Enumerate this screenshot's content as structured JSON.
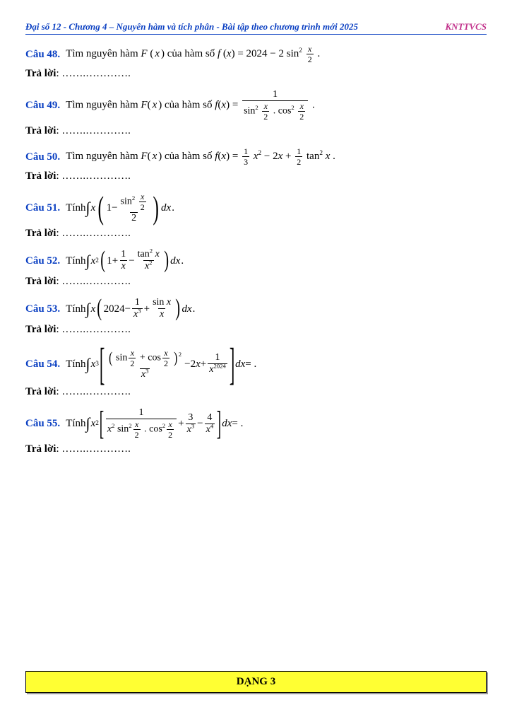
{
  "header": {
    "left": "Đại số 12 - Chương 4 – Nguyên hàm và tích phân - Bài tập theo chương trình mới 2025",
    "right": "KNTTVCS"
  },
  "answer_label": "Trả lời",
  "dots": ": …….………….",
  "footer_box": "DẠNG 3",
  "q48": {
    "num": "Câu 48.",
    "lead": "Tìm nguyên hàm ",
    "Fx": "F",
    "x": "x",
    "mid": " của hàm số ",
    "f": "f",
    "eq": " = 2024 − 2 sin",
    "frac_num": "x",
    "frac_den": "2",
    "dot": "."
  },
  "q49": {
    "num": "Câu 49.",
    "lead": "Tìm nguyên hàm ",
    "mid": " của hàm số ",
    "one": "1",
    "sin": "sin",
    "cos": "cos",
    "half_num": "x",
    "half_den": "2",
    "dot": "."
  },
  "q50": {
    "num": "Câu 50.",
    "lead": "Tìm nguyên hàm ",
    "mid": " của hàm số ",
    "a": "1",
    "b": "3",
    "c": "2",
    "d": "1",
    "e": "2",
    "tan": "tan",
    "dot": "."
  },
  "q51": {
    "num": "Câu 51.",
    "lead": "Tính ",
    "sin": "sin",
    "hnum": "x",
    "hden": "2",
    "two": "2",
    "one": "1",
    "dx": "dx",
    "dot": "."
  },
  "q52": {
    "num": "Câu 52.",
    "lead": "Tính ",
    "one": "1",
    "tan": "tan",
    "x": "x",
    "dx": "dx",
    "dot": "."
  },
  "q53": {
    "num": "Câu 53.",
    "lead": "Tính ",
    "c": "2024",
    "one": "1",
    "sin": "sin",
    "x": "x",
    "dx": "dx",
    "dot": "."
  },
  "q54": {
    "num": "Câu 54.",
    "lead": "Tính ",
    "sin": "sin",
    "cos": "cos",
    "hnum": "x",
    "hden": "2",
    "two": "2",
    "one": "1",
    "c": "2024",
    "dx": "dx",
    "eq": " = .",
    "x": "x"
  },
  "q55": {
    "num": "Câu 55.",
    "lead": "Tính ",
    "one": "1",
    "sin": "sin",
    "cos": "cos",
    "hnum": "x",
    "hden": "2",
    "three": "3",
    "four": "4",
    "dx": "dx",
    "eq": " = .",
    "x": "x"
  }
}
